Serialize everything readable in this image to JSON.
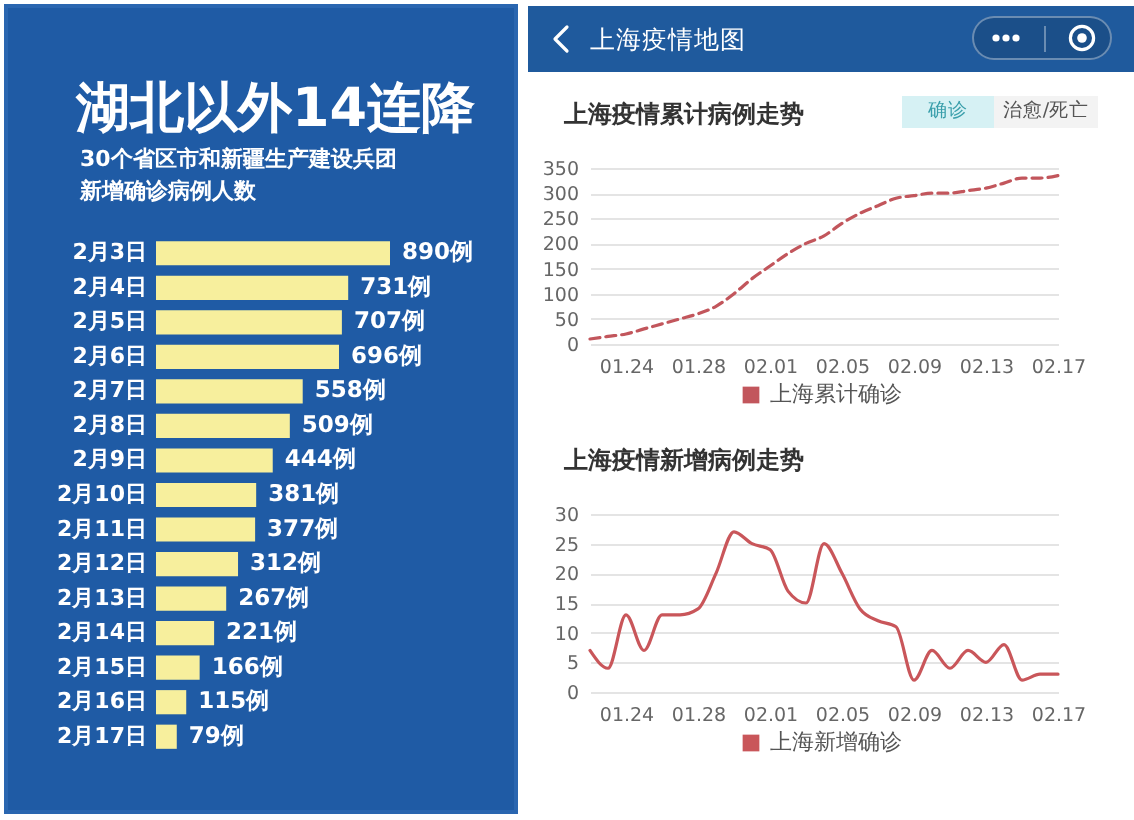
{
  "chart_data": [
    {
      "type": "bar",
      "orientation": "horizontal",
      "title": "湖北以外14连降",
      "subtitle": "30个省区市和新疆生产建设兵团新增确诊病例人数",
      "categories": [
        "2月3日",
        "2月4日",
        "2月5日",
        "2月6日",
        "2月7日",
        "2月8日",
        "2月9日",
        "2月10日",
        "2月11日",
        "2月12日",
        "2月13日",
        "2月14日",
        "2月15日",
        "2月16日",
        "2月17日"
      ],
      "values": [
        890,
        731,
        707,
        696,
        558,
        509,
        444,
        381,
        377,
        312,
        267,
        221,
        166,
        115,
        79
      ],
      "value_labels": [
        "890例",
        "731例",
        "707例",
        "696例",
        "558例",
        "509例",
        "444例",
        "381例",
        "377例",
        "312例",
        "267例",
        "221例",
        "166例",
        "115例",
        "79例"
      ],
      "color": "#f7ef9d",
      "tick_labels": "y"
    },
    {
      "type": "line",
      "title": "上海疫情累计病例走势",
      "annotations": [
        "上海疫情地图",
        "确诊",
        "治愈/死亡"
      ],
      "x": [
        "--01-22",
        "--01-23",
        "--01-24",
        "--01-25",
        "--01-26",
        "--01-27",
        "--01-28",
        "--01-29",
        "--01-30",
        "--01-31",
        "--02-01",
        "--02-02",
        "--02-03",
        "--02-04",
        "--02-05",
        "--02-06",
        "--02-07",
        "--02-08",
        "--02-09",
        "--02-10",
        "--02-11",
        "--02-12",
        "--02-13",
        "--02-14",
        "--02-15",
        "--02-16",
        "--02-17"
      ],
      "series": [
        {
          "name": "上海累计确诊",
          "color": "#c2565c",
          "values": [
            10,
            15,
            20,
            30,
            40,
            50,
            60,
            75,
            100,
            130,
            155,
            180,
            200,
            215,
            240,
            260,
            275,
            290,
            295,
            300,
            300,
            305,
            310,
            320,
            330,
            330,
            335
          ]
        }
      ],
      "xlim": [
        "--01-22",
        "--02-17"
      ],
      "xticks": [
        {
          "value": "--01-24",
          "label": "01.24"
        },
        {
          "value": "--01-28",
          "label": "01.28"
        },
        {
          "value": "--02-01",
          "label": "02.01"
        },
        {
          "value": "--02-05",
          "label": "02.05"
        },
        {
          "value": "--02-09",
          "label": "02.09"
        },
        {
          "value": "--02-13",
          "label": "02.13"
        },
        {
          "value": "--02-17",
          "label": "02.17"
        }
      ],
      "ylim": [
        0,
        350
      ],
      "yticks": [
        0,
        50,
        100,
        150,
        200,
        250,
        300,
        350
      ],
      "grid": "y",
      "legend": "bottom",
      "line_style": "dashed"
    },
    {
      "type": "line",
      "title": "上海疫情新增病例走势",
      "x": [
        "--01-22",
        "--01-23",
        "--01-24",
        "--01-25",
        "--01-26",
        "--01-27",
        "--01-28",
        "--01-29",
        "--01-30",
        "--01-31",
        "--02-01",
        "--02-02",
        "--02-03",
        "--02-04",
        "--02-05",
        "--02-06",
        "--02-07",
        "--02-08",
        "--02-09",
        "--02-10",
        "--02-11",
        "--02-12",
        "--02-13",
        "--02-14",
        "--02-15",
        "--02-16",
        "--02-17"
      ],
      "series": [
        {
          "name": "上海新增确诊",
          "color": "#c9565a",
          "values": [
            7,
            4,
            13,
            7,
            13,
            13,
            14,
            20,
            27,
            25,
            24,
            17,
            15,
            25,
            20,
            14,
            12,
            11,
            2,
            7,
            4,
            7,
            5,
            8,
            2,
            3,
            3
          ]
        }
      ],
      "xlim": [
        "--01-22",
        "--02-17"
      ],
      "xticks": [
        {
          "value": "--01-24",
          "label": "01.24"
        },
        {
          "value": "--01-28",
          "label": "01.28"
        },
        {
          "value": "--02-01",
          "label": "02.01"
        },
        {
          "value": "--02-05",
          "label": "02.05"
        },
        {
          "value": "--02-09",
          "label": "02.09"
        },
        {
          "value": "--02-13",
          "label": "02.13"
        },
        {
          "value": "--02-17",
          "label": "02.17"
        }
      ],
      "ylim": [
        0,
        30
      ],
      "yticks": [
        0,
        5,
        10,
        15,
        20,
        25,
        30
      ],
      "grid": "y",
      "legend": "bottom",
      "line_style": "solid"
    }
  ]
}
